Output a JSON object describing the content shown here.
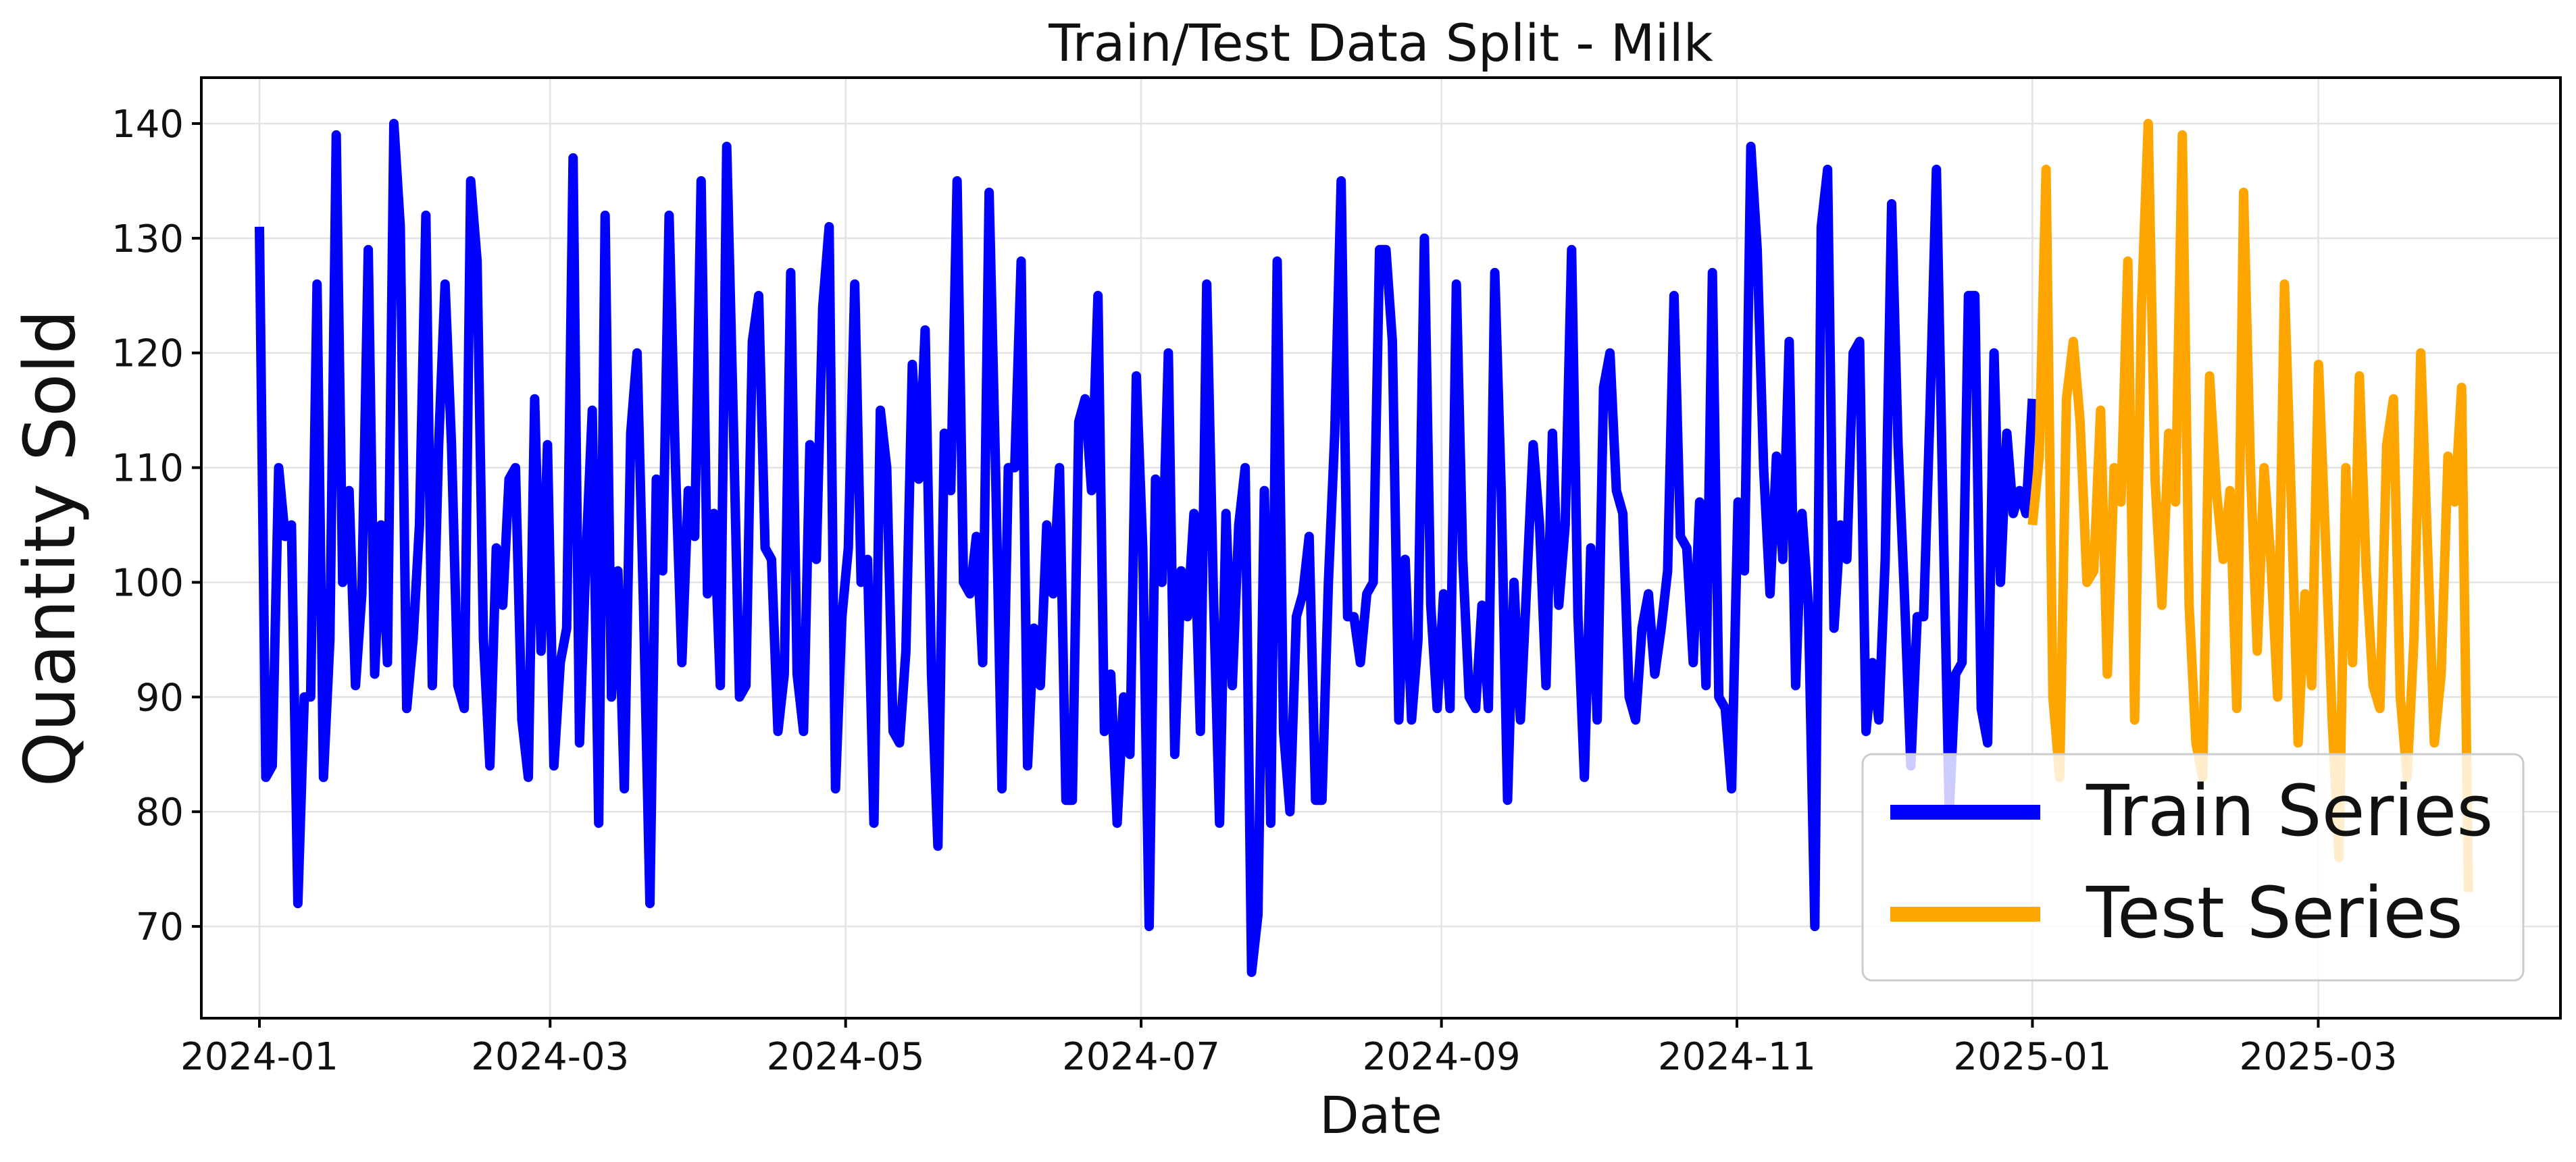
{
  "chart_data": {
    "type": "line",
    "title": "Train/Test Data Split - Milk",
    "xlabel": "Date",
    "ylabel": "Quantity Sold",
    "x_range": [
      "2023-12-20",
      "2025-04-20"
    ],
    "ylim": [
      62,
      144
    ],
    "grid": true,
    "legend_position": "lower-right",
    "x_ticks": [
      "2024-01",
      "2024-03",
      "2024-05",
      "2024-07",
      "2024-09",
      "2024-11",
      "2025-01",
      "2025-03"
    ],
    "y_ticks": [
      "70",
      "80",
      "90",
      "100",
      "110",
      "120",
      "130",
      "140"
    ],
    "series": [
      {
        "name": "Train Series",
        "color": "#0000ff",
        "start": "2024-01-01",
        "end": "2025-01-01",
        "values": [
          131,
          83,
          84,
          110,
          104,
          105,
          72,
          90,
          90,
          126,
          83,
          95,
          139,
          100,
          108,
          91,
          99,
          129,
          92,
          105,
          93,
          140,
          131,
          89,
          95,
          105,
          132,
          91,
          112,
          126,
          112,
          91,
          89,
          135,
          128,
          95,
          84,
          103,
          98,
          109,
          110,
          88,
          83,
          116,
          94,
          112,
          84,
          93,
          96,
          137,
          86,
          102,
          115,
          79,
          132,
          90,
          101,
          82,
          113,
          120,
          98,
          72,
          109,
          101,
          132,
          110,
          93,
          108,
          104,
          135,
          99,
          106,
          91,
          138,
          115,
          90,
          91,
          121,
          125,
          103,
          102,
          87,
          92,
          127,
          92,
          87,
          112,
          102,
          124,
          131,
          82,
          97,
          103,
          126,
          100,
          102,
          79,
          115,
          110,
          87,
          86,
          94,
          119,
          109,
          122,
          92,
          77,
          113,
          108,
          135,
          100,
          99,
          104,
          93,
          134,
          110,
          82,
          110,
          110,
          128,
          84,
          96,
          91,
          105,
          99,
          110,
          81,
          81,
          114,
          116,
          108,
          125,
          87,
          92,
          79,
          90,
          85,
          118,
          103,
          70,
          109,
          100,
          120,
          85,
          101,
          97,
          106,
          87,
          126,
          100,
          79,
          106,
          91,
          105,
          110,
          66,
          71,
          108,
          79,
          128,
          87,
          80,
          97,
          99,
          104,
          81,
          81,
          100,
          113,
          135,
          97,
          97,
          93,
          99,
          100,
          129,
          129,
          121,
          88,
          102,
          88,
          95,
          130,
          98,
          89,
          99,
          89,
          126,
          102,
          90,
          89,
          98,
          89,
          127,
          108,
          81,
          100,
          88,
          100,
          112,
          105,
          91,
          113,
          98,
          105,
          129,
          97,
          83,
          103,
          88,
          117,
          120,
          108,
          106,
          90,
          88,
          96,
          99,
          92,
          96,
          101,
          125,
          104,
          103,
          93,
          107,
          91,
          127,
          90,
          89,
          82,
          107,
          101,
          138,
          129,
          110,
          99,
          111,
          102,
          121,
          91,
          106,
          98,
          70,
          131,
          136,
          96,
          105,
          102,
          120,
          121,
          87,
          93,
          88,
          102,
          133,
          112,
          99,
          84,
          97,
          97,
          115,
          136,
          107,
          80,
          92,
          93,
          125,
          125,
          89,
          86,
          120,
          100,
          113,
          106,
          108,
          106,
          116
        ]
      },
      {
        "name": "Test Series",
        "color": "#ffa500",
        "start": "2025-01-01",
        "end": "2025-04-01",
        "values": [
          105,
          111,
          136,
          90,
          83,
          116,
          121,
          114,
          100,
          101,
          115,
          92,
          110,
          107,
          128,
          88,
          124,
          140,
          109,
          98,
          113,
          107,
          139,
          98,
          86,
          83,
          118,
          108,
          102,
          108,
          89,
          134,
          110,
          94,
          110,
          102,
          90,
          126,
          107,
          86,
          99,
          91,
          119,
          104,
          88,
          76,
          110,
          93,
          118,
          101,
          91,
          89,
          112,
          116,
          90,
          83,
          95,
          120,
          103,
          86,
          92,
          111,
          107,
          117,
          73
        ]
      }
    ]
  }
}
